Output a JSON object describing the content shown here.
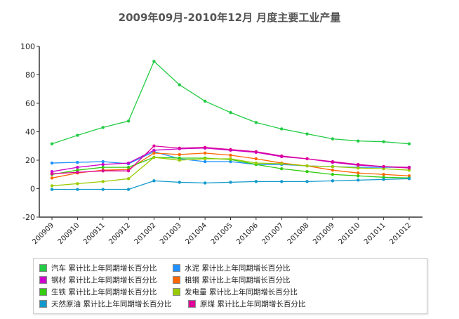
{
  "chart_data": {
    "type": "line",
    "title": "2009年09月-2010年12月 月度主要工业产量",
    "xlabel": "",
    "ylabel": "",
    "ylim": [
      -20,
      100
    ],
    "yticks": [
      "-20",
      "0",
      "20",
      "40",
      "60",
      "80",
      "100"
    ],
    "categories": [
      "200909",
      "200910",
      "200911",
      "200912",
      "201002",
      "201003",
      "201004",
      "201005",
      "201006",
      "201007",
      "201008",
      "201009",
      "201010",
      "201011",
      "201012"
    ],
    "legend_position": "bottom",
    "series": [
      {
        "name": "汽车 累计比上年同期增长百分比",
        "color": "#22cc44",
        "values": [
          31.5,
          37.5,
          43,
          47.5,
          89.5,
          73,
          61.5,
          53.5,
          46.5,
          42,
          38.5,
          35,
          33.5,
          33,
          31.5
        ]
      },
      {
        "name": "水泥 累计比上年同期增长百分比",
        "color": "#1e90ff",
        "values": [
          18,
          18.5,
          19,
          17.5,
          26,
          21,
          19,
          19,
          17,
          17,
          16,
          15.5,
          15,
          15,
          15
        ]
      },
      {
        "name": "钢材 累计比上年同期增长百分比",
        "color": "#cc00cc",
        "values": [
          12,
          15,
          17,
          18,
          27,
          28,
          28.5,
          27,
          25.5,
          22.5,
          21,
          18.5,
          16.5,
          15.5,
          15
        ]
      },
      {
        "name": "粗钢 累计比上年同期增长百分比",
        "color": "#ff6600",
        "values": [
          7.5,
          11,
          13,
          13.5,
          25,
          24,
          25,
          23.5,
          21,
          18,
          16,
          13,
          11,
          10,
          9
        ]
      },
      {
        "name": "生铁 累计比上年同期增长百分比",
        "color": "#33cc11",
        "values": [
          10,
          13,
          15,
          15,
          22,
          21.5,
          21.5,
          20.5,
          17,
          14,
          12,
          10,
          9,
          8,
          7.5
        ]
      },
      {
        "name": "发电量 累计比上年同期增长百分比",
        "color": "#99cc00",
        "values": [
          2,
          3.5,
          5,
          7,
          22,
          20,
          21,
          21,
          18,
          17.5,
          16,
          15.5,
          14.5,
          14,
          13
        ]
      },
      {
        "name": "天然原油 累计比上年同期增长百分比",
        "color": "#1199cc",
        "values": [
          -0.5,
          -0.5,
          -0.5,
          -0.5,
          5.5,
          4.5,
          4,
          4.5,
          5,
          5,
          5,
          5.5,
          6,
          6.5,
          7
        ]
      },
      {
        "name": "原煤 累计比上年同期增长百分比",
        "color": "#dd0099",
        "values": [
          10.5,
          11.5,
          12.5,
          12.5,
          30,
          28.5,
          29,
          27.5,
          26,
          23,
          21,
          19,
          17,
          15.5,
          14.5
        ]
      }
    ]
  }
}
